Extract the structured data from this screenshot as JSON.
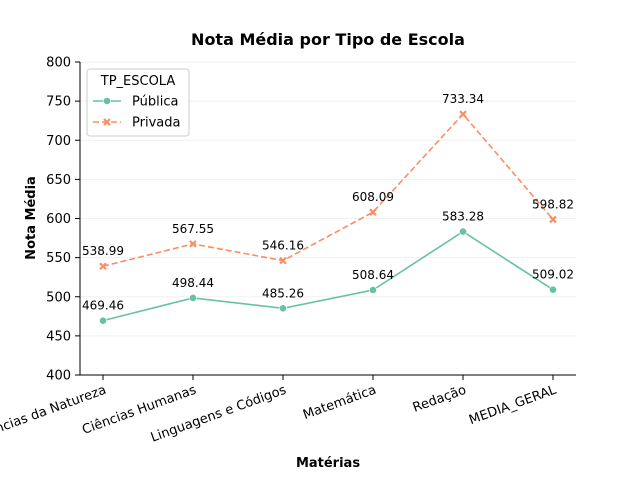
{
  "chart_data": {
    "type": "line",
    "title": "Nota Média por Tipo de Escola",
    "xlabel": "Matérias",
    "ylabel": "Nota Média",
    "categories": [
      "Ciências da Natureza",
      "Ciências Humanas",
      "Linguagens e Códigos",
      "Matemática",
      "Redação",
      "MEDIA_GERAL"
    ],
    "ylim": [
      400,
      800
    ],
    "yticks": [
      400,
      450,
      500,
      550,
      600,
      650,
      700,
      750,
      800
    ],
    "grid": true,
    "legend": {
      "title": "TP_ESCOLA",
      "placement": "top-left"
    },
    "series": [
      {
        "name": "Pública",
        "values": [
          469.46,
          498.44,
          485.26,
          508.64,
          583.28,
          509.02
        ],
        "labels": [
          "469.46",
          "498.44",
          "485.26",
          "508.64",
          "583.28",
          "509.02"
        ],
        "color": "#66c2a5",
        "marker": "circle",
        "linestyle": "solid"
      },
      {
        "name": "Privada",
        "values": [
          538.99,
          567.55,
          546.16,
          608.09,
          733.34,
          598.82
        ],
        "labels": [
          "538.99",
          "567.55",
          "546.16",
          "608.09",
          "733.34",
          "598.82"
        ],
        "color": "#fc8d62",
        "marker": "x",
        "linestyle": "dashed"
      }
    ]
  }
}
